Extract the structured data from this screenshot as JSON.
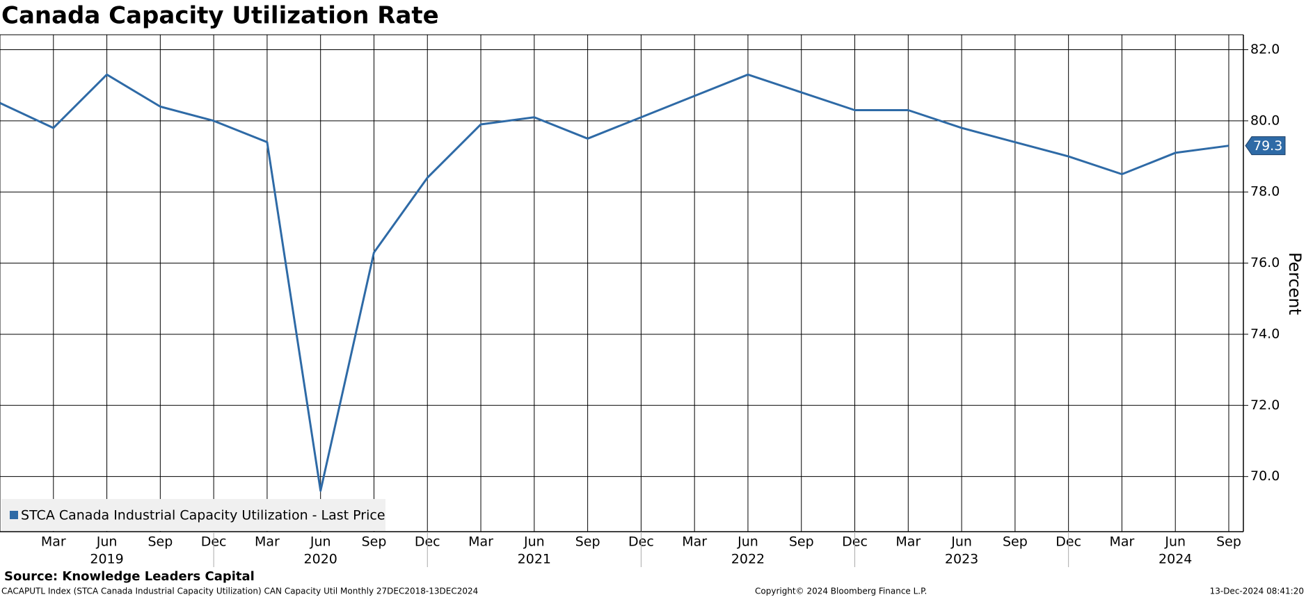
{
  "chart_data": {
    "type": "line",
    "title": "Canada Capacity Utilization Rate",
    "y_label": "Percent",
    "source": "Source: Knowledge Leaders Capital",
    "footer_left": "CACAPUTL Index (STCA Canada Industrial Capacity Utilization) CAN Capacity Util  Monthly 27DEC2018-13DEC2024",
    "footer_center": "Copyright© 2024 Bloomberg Finance L.P.",
    "footer_right": "13-Dec-2024 08:41:20",
    "categories": [
      null,
      "Mar",
      "Jun",
      "Sep",
      "Dec",
      "Mar",
      "Jun",
      "Sep",
      "Dec",
      "Mar",
      "Jun",
      "Sep",
      "Dec",
      "Mar",
      "Jun",
      "Sep",
      "Dec",
      "Mar",
      "Jun",
      "Sep",
      "Dec",
      "Mar",
      "Jun",
      "Sep"
    ],
    "years": [
      "2019",
      "2020",
      "2021",
      "2022",
      "2023",
      "2024"
    ],
    "series": [
      {
        "name": "STCA Canada Industrial Capacity Utilization - Last Price",
        "color": "#2e6aa6",
        "values": [
          80.5,
          79.8,
          81.3,
          80.4,
          80.0,
          79.4,
          69.6,
          76.3,
          78.4,
          79.9,
          80.1,
          79.5,
          80.1,
          80.7,
          81.3,
          80.8,
          80.3,
          80.3,
          79.8,
          79.4,
          79.0,
          78.5,
          79.1,
          79.3
        ]
      }
    ],
    "ylim": [
      68.45,
      82.42
    ],
    "yticks": [
      {
        "value": 70,
        "label": "70.0"
      },
      {
        "value": 72,
        "label": "72.0"
      },
      {
        "value": 74,
        "label": "74.0"
      },
      {
        "value": 76,
        "label": "76.0"
      },
      {
        "value": 78,
        "label": "78.0"
      },
      {
        "value": 80,
        "label": "80.0"
      },
      {
        "value": 82,
        "label": "82.0"
      }
    ],
    "grid": true,
    "legend": "bottom-left"
  }
}
